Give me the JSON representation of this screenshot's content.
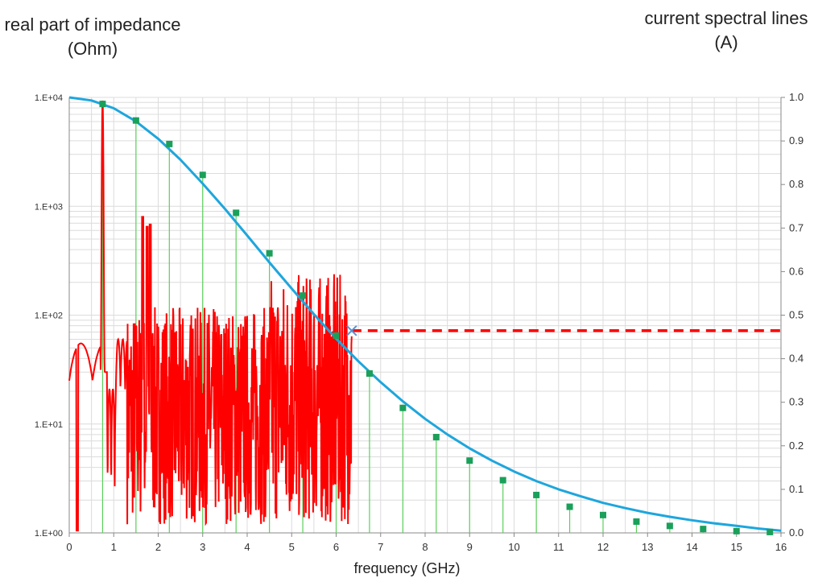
{
  "chart_data": {
    "type": "line",
    "xlabel": "frequency (GHz)",
    "ylabel_left": "real part of impedance (Ohm)",
    "ylabel_right": "current spectral lines (A)",
    "x_range": [
      0,
      16
    ],
    "x_ticks": [
      "0",
      "1",
      "2",
      "3",
      "4",
      "5",
      "6",
      "7",
      "8",
      "9",
      "10",
      "11",
      "12",
      "13",
      "14",
      "15",
      "16"
    ],
    "y_left_scale": "log",
    "y_left_range": [
      1,
      10000
    ],
    "y_left_ticks": [
      "1.E+00",
      "1.E+01",
      "1.E+02",
      "1.E+03",
      "1.E+04"
    ],
    "y_right_range": [
      0,
      1.0
    ],
    "y_right_ticks": [
      "0.0",
      "0.1",
      "0.2",
      "0.3",
      "0.4",
      "0.5",
      "0.6",
      "0.7",
      "0.8",
      "0.9",
      "1.0"
    ],
    "grid": true,
    "colors": {
      "envelope": "#1ea6dd",
      "lines": "#5ccf5c",
      "markers": "#1aa05a",
      "impedance": "#ff0000",
      "grid": "#dcdcdc"
    },
    "series": [
      {
        "kind": "envelope",
        "axis": "right",
        "x": [
          0,
          0.5,
          1.0,
          1.5,
          2.0,
          2.5,
          3.0,
          3.5,
          4.0,
          4.5,
          5.0,
          5.5,
          6.0,
          6.5,
          7.0,
          7.5,
          8.0,
          8.5,
          9.0,
          9.5,
          10.0,
          10.5,
          11.0,
          11.5,
          12.0,
          12.5,
          13.0,
          13.5,
          14.0,
          14.5,
          15.0,
          15.5,
          16.0
        ],
        "values": [
          1.0,
          0.993,
          0.975,
          0.945,
          0.905,
          0.857,
          0.802,
          0.744,
          0.683,
          0.621,
          0.561,
          0.502,
          0.446,
          0.394,
          0.346,
          0.302,
          0.262,
          0.226,
          0.194,
          0.166,
          0.141,
          0.119,
          0.1,
          0.084,
          0.069,
          0.057,
          0.046,
          0.037,
          0.029,
          0.022,
          0.016,
          0.01,
          0.005
        ]
      },
      {
        "kind": "spectral_lines",
        "axis": "right",
        "x": [
          0.75,
          1.5,
          2.25,
          3.0,
          3.75,
          4.5,
          5.25,
          6.0,
          6.75,
          7.5,
          8.25,
          9.0,
          9.75,
          10.5,
          11.25,
          12.0,
          12.75,
          13.5,
          14.25,
          15.0,
          15.75
        ],
        "values": [
          0.985,
          0.947,
          0.893,
          0.822,
          0.735,
          0.642,
          0.545,
          0.453,
          0.366,
          0.287,
          0.22,
          0.166,
          0.121,
          0.087,
          0.06,
          0.041,
          0.026,
          0.016,
          0.009,
          0.004,
          0.002
        ]
      },
      {
        "kind": "impedance",
        "axis": "left",
        "x_range": [
          0,
          6.35
        ],
        "resonance_peaks": [
          {
            "x": 0.75,
            "value": 9500
          },
          {
            "x": 1.65,
            "value": 800
          },
          {
            "x": 1.75,
            "value": 650
          },
          {
            "x": 1.82,
            "value": 680
          }
        ],
        "band_max": 240
      },
      {
        "kind": "extrapolation",
        "axis": "left",
        "style": "dashed",
        "x": [
          6.35,
          16.0
        ],
        "values": [
          72,
          72
        ]
      }
    ],
    "marker": {
      "x": 6.35,
      "value": 72,
      "symbol": "x"
    }
  }
}
